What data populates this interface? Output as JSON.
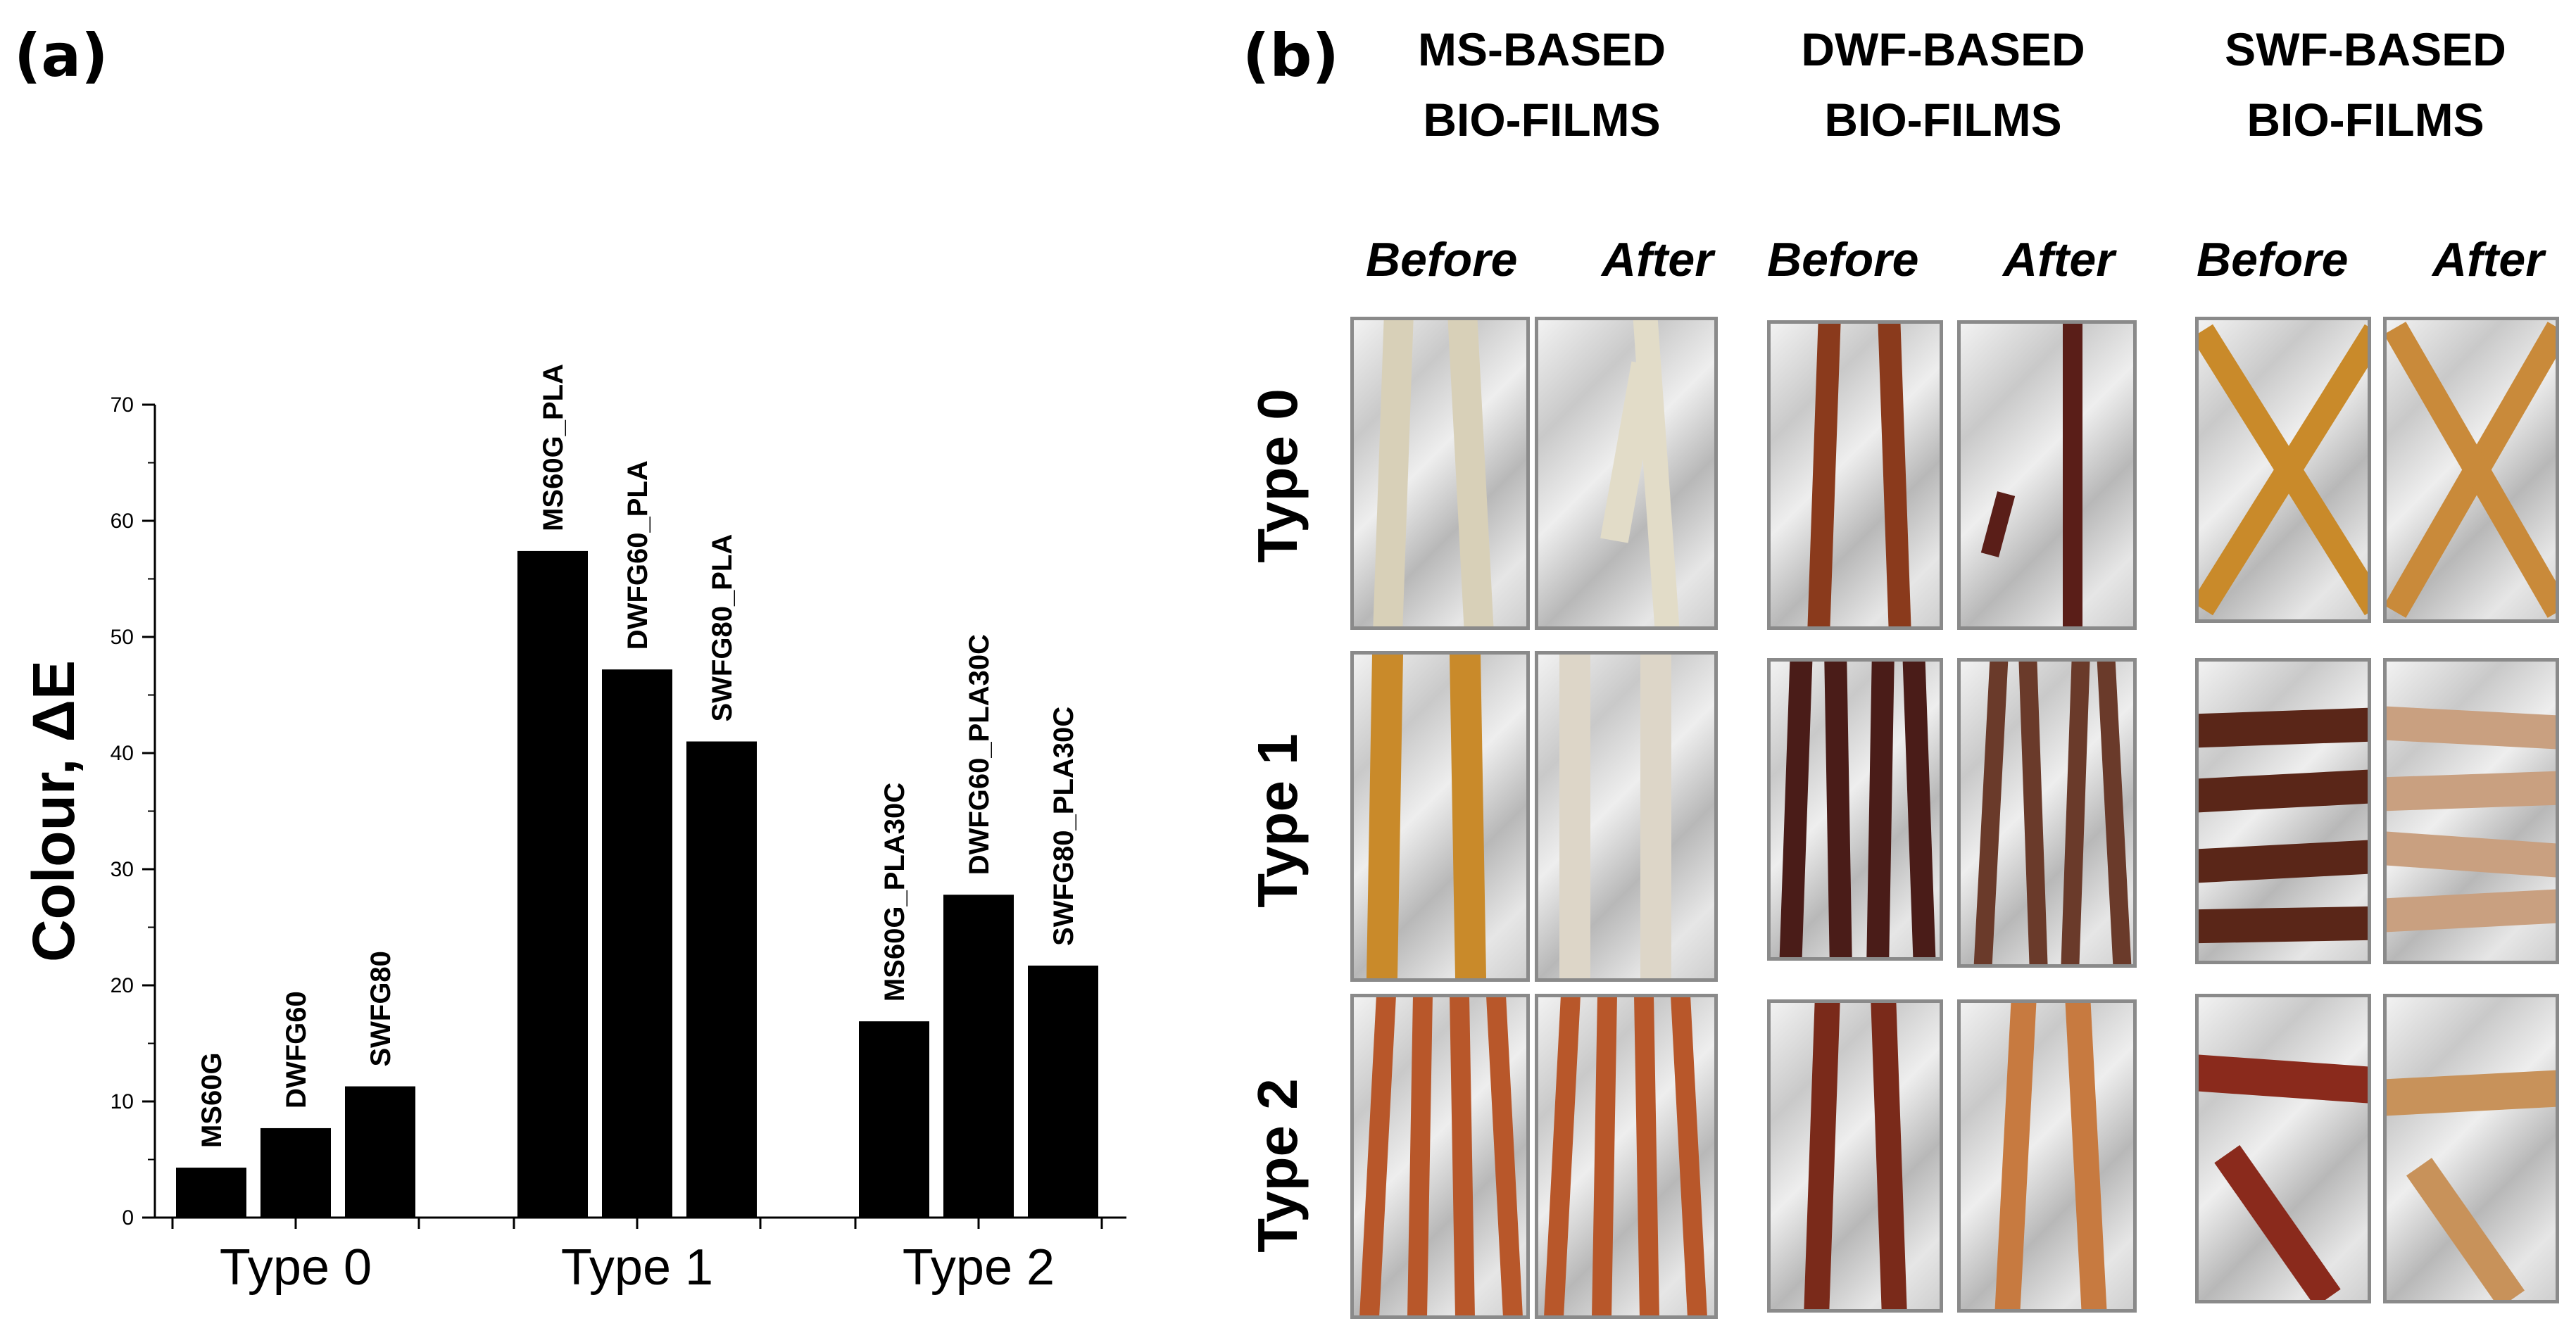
{
  "panel_a_label": "(a)",
  "panel_b_label": "(b)",
  "chart_data": {
    "type": "bar",
    "ylabel": "Colour, ΔE",
    "xlabel": "",
    "ylim": [
      0,
      70
    ],
    "yticks": [
      0,
      10,
      20,
      30,
      40,
      50,
      60,
      70
    ],
    "groups": [
      {
        "label": "Type 0",
        "bars": [
          {
            "name": "MS60G",
            "value": 4.3
          },
          {
            "name": "DWFG60",
            "value": 7.7
          },
          {
            "name": "SWFG80",
            "value": 11.3
          }
        ]
      },
      {
        "label": "Type 1",
        "bars": [
          {
            "name": "MS60G_PLA",
            "value": 57.4
          },
          {
            "name": "DWFG60_PLA",
            "value": 47.2
          },
          {
            "name": "SWFG80_PLA",
            "value": 41.0
          }
        ]
      },
      {
        "label": "Type 2",
        "bars": [
          {
            "name": "MS60G_PLA30C",
            "value": 16.9
          },
          {
            "name": "DWFG60_PLA30C",
            "value": 27.8
          },
          {
            "name": "SWFG80_PLA30C",
            "value": 21.7
          }
        ]
      }
    ],
    "bar_color": "#000000",
    "grid": false,
    "legend": "none"
  },
  "panel_b": {
    "columns": [
      {
        "line1": "MS-BASED",
        "line2": "BIO-FILMS"
      },
      {
        "line1": "DWF-BASED",
        "line2": "BIO-FILMS"
      },
      {
        "line1": "SWF-BASED",
        "line2": "BIO-FILMS"
      }
    ],
    "phases": [
      "Before",
      "After",
      "Before",
      "After",
      "Before",
      "After"
    ],
    "rows": [
      "Type 0",
      "Type 1",
      "Type 2"
    ],
    "strip_colors": {
      "ms_before_type0": "#d8d0b8",
      "ms_after_type0": "#e2dcc8",
      "ms_type1_before": "#c98a2a",
      "ms_type1_after": "#ddd6c8",
      "ms_type2": "#b8572a",
      "dwf_type0": "#8a3a1c",
      "dwf_type0_after": "#5a1e18",
      "dwf_type1": "#4a1c18",
      "dwf_type1_after": "#6a3a2a",
      "dwf_type2": "#7a2a1a",
      "dwf_type2_after": "#c77a40",
      "swf_type0": "#c98a2a",
      "swf_type0_after": "#c98a3a",
      "swf_type1": "#5a2618",
      "swf_type1_after": "#c9a080",
      "swf_type2": "#8a2a1c",
      "swf_type2_after": "#c8925a"
    }
  }
}
